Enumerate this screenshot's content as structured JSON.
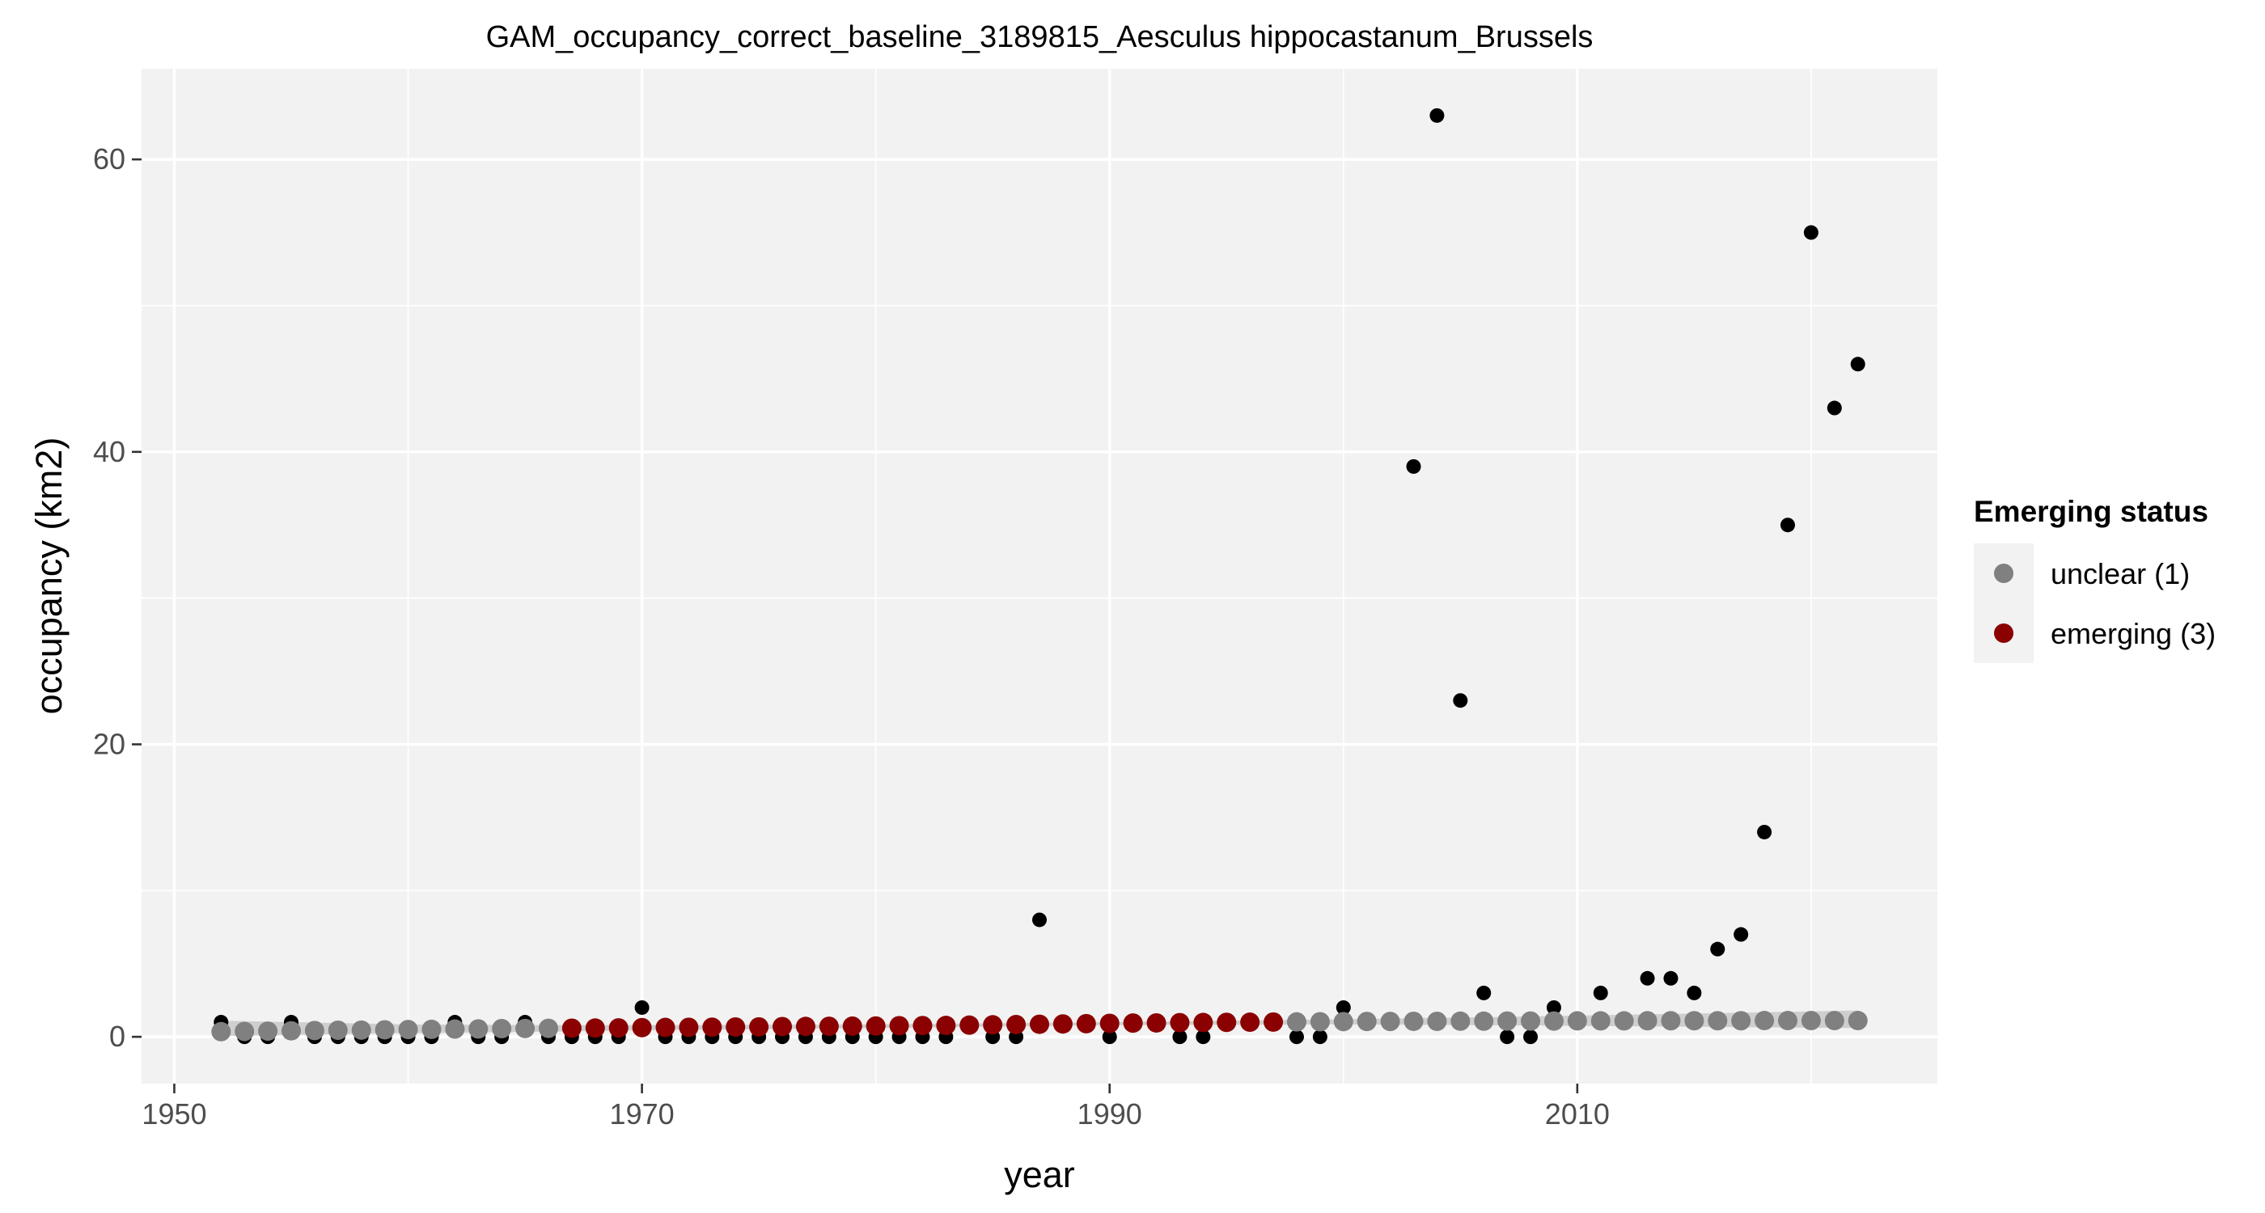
{
  "chart_data": {
    "type": "scatter",
    "title": "GAM_occupancy_correct_baseline_3189815_Aesculus hippocastanum_Brussels",
    "xlabel": "year",
    "ylabel": "occupancy (km2)",
    "xlim": [
      1948.6,
      2025.4
    ],
    "ylim": [
      -3.2,
      66.2
    ],
    "x_ticks": [
      1950,
      1970,
      1990,
      2010
    ],
    "y_ticks": [
      0,
      20,
      40,
      60
    ],
    "grid": true,
    "legend_position": "right",
    "legend_title": "Emerging status",
    "colors": {
      "observed": "#000000",
      "unclear": "#808080",
      "emerging": "#8b0000",
      "ribbon": "#c8c8c8",
      "panel": "#f2f2f2"
    },
    "series": [
      {
        "name": "",
        "role": "observed",
        "x": [
          1952,
          1953,
          1954,
          1955,
          1956,
          1957,
          1958,
          1959,
          1960,
          1961,
          1962,
          1963,
          1964,
          1965,
          1966,
          1967,
          1968,
          1969,
          1970,
          1971,
          1972,
          1973,
          1974,
          1975,
          1976,
          1977,
          1978,
          1979,
          1980,
          1981,
          1982,
          1983,
          1985,
          1986,
          1987,
          1990,
          1993,
          1994,
          1998,
          1999,
          2000,
          2003,
          2004,
          2005,
          2006,
          2007,
          2008,
          2009,
          2011,
          2013,
          2014,
          2015,
          2016,
          2017,
          2018,
          2019,
          2020,
          2021,
          2022
        ],
        "y": [
          1,
          0,
          0,
          1,
          0,
          0,
          0,
          0,
          0,
          0,
          1,
          0,
          0,
          1,
          0,
          0,
          0,
          0,
          2,
          0,
          0,
          0,
          0,
          0,
          0,
          0,
          0,
          0,
          0,
          0,
          0,
          0,
          0,
          0,
          8,
          0,
          0,
          0,
          0,
          0,
          2,
          39,
          63,
          23,
          3,
          0,
          0,
          2,
          3,
          4,
          4,
          3,
          6,
          7,
          14,
          35,
          55,
          43,
          46
        ]
      },
      {
        "name": "unclear (1)",
        "role": "fitted",
        "x": [
          1952,
          1953,
          1954,
          1955,
          1956,
          1957,
          1958,
          1959,
          1960,
          1961,
          1962,
          1963,
          1964,
          1965,
          1966
        ],
        "y": [
          0.35,
          0.37,
          0.39,
          0.41,
          0.43,
          0.45,
          0.46,
          0.48,
          0.5,
          0.51,
          0.53,
          0.54,
          0.56,
          0.57,
          0.58
        ]
      },
      {
        "name": "emerging (3)",
        "role": "fitted",
        "x": [
          1967,
          1968,
          1969,
          1970,
          1971,
          1972,
          1973,
          1974,
          1975,
          1976,
          1977,
          1978,
          1979,
          1980,
          1981,
          1982,
          1983,
          1984,
          1985,
          1986,
          1987,
          1988,
          1989,
          1990,
          1991,
          1992,
          1993,
          1994,
          1995,
          1996,
          1997
        ],
        "y": [
          0.59,
          0.6,
          0.61,
          0.63,
          0.64,
          0.65,
          0.66,
          0.67,
          0.68,
          0.7,
          0.71,
          0.72,
          0.73,
          0.74,
          0.76,
          0.77,
          0.78,
          0.8,
          0.82,
          0.84,
          0.86,
          0.88,
          0.9,
          0.92,
          0.94,
          0.95,
          0.97,
          0.98,
          0.99,
          1,
          1.01
        ]
      },
      {
        "name": "unclear (1)",
        "role": "fitted",
        "x": [
          1998,
          1999,
          2000,
          2001,
          2002,
          2003,
          2004,
          2005,
          2006,
          2007,
          2008,
          2009,
          2010,
          2011,
          2012,
          2013,
          2014,
          2015,
          2016,
          2017,
          2018,
          2019,
          2020,
          2021,
          2022
        ],
        "y": [
          1.02,
          1.03,
          1.04,
          1.05,
          1.05,
          1.06,
          1.06,
          1.07,
          1.07,
          1.08,
          1.08,
          1.08,
          1.09,
          1.09,
          1.09,
          1.1,
          1.1,
          1.1,
          1.1,
          1.1,
          1.11,
          1.11,
          1.11,
          1.11,
          1.11
        ]
      }
    ],
    "ribbon": {
      "x": [
        1952,
        1960,
        1966,
        1970,
        1980,
        1990,
        2000,
        2010,
        2022
      ],
      "lower": [
        0.05,
        0.25,
        0.35,
        0.45,
        0.6,
        0.8,
        0.85,
        0.75,
        0.6
      ],
      "upper": [
        1.1,
        0.85,
        0.8,
        0.8,
        0.85,
        1.0,
        1.2,
        1.45,
        1.8
      ]
    },
    "legend": [
      {
        "label": "unclear (1)",
        "color": "#808080"
      },
      {
        "label": "emerging (3)",
        "color": "#8b0000"
      }
    ]
  }
}
